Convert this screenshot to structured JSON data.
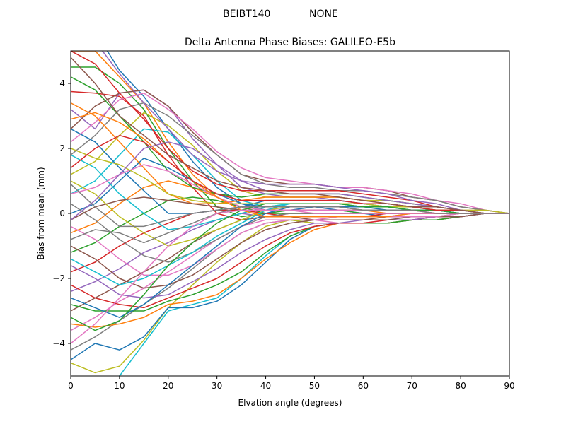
{
  "figure": {
    "suptitle_left": "BEIBT140",
    "suptitle_right": "NONE"
  },
  "chart_data": {
    "type": "line",
    "title": "Delta Antenna Phase Biases: GALILEO-E5b",
    "xlabel": "Elvation angle (degrees)",
    "ylabel": "Bias from mean (mm)",
    "xlim": [
      0,
      90
    ],
    "ylim": [
      -5,
      5
    ],
    "xticks": [
      0,
      10,
      20,
      30,
      40,
      50,
      60,
      70,
      80,
      90
    ],
    "yticks": [
      -4,
      -2,
      0,
      2,
      4
    ],
    "grid": false,
    "legend": "none",
    "palette": [
      "#1f77b4",
      "#ff7f0e",
      "#2ca02c",
      "#d62728",
      "#9467bd",
      "#8c564b",
      "#e377c2",
      "#7f7f7f",
      "#bcbd22",
      "#17becf"
    ],
    "x": [
      0,
      5,
      10,
      15,
      20,
      25,
      30,
      35,
      40,
      45,
      50,
      55,
      60,
      65,
      70,
      75,
      80,
      85,
      90
    ],
    "series": [
      {
        "values": [
          6.2,
          5.6,
          4.4,
          3.6,
          2.6,
          1.6,
          0.8,
          0.3,
          0.2,
          0.2,
          0.2,
          0.1,
          0.0,
          -0.1,
          -0.1,
          -0.1,
          -0.1,
          0.0,
          0.0
        ]
      },
      {
        "values": [
          5.0,
          5.0,
          4.2,
          3.4,
          2.2,
          1.2,
          0.5,
          0.1,
          0.1,
          0.1,
          0.1,
          0.1,
          0.1,
          0.0,
          0.0,
          0.0,
          0.0,
          0.0,
          0.0
        ]
      },
      {
        "values": [
          4.5,
          4.5,
          4.0,
          3.2,
          2.0,
          1.0,
          0.2,
          -0.1,
          0.0,
          0.1,
          0.1,
          0.1,
          0.0,
          0.0,
          0.0,
          0.0,
          0.0,
          0.0,
          0.0
        ]
      },
      {
        "values": [
          3.75,
          3.7,
          3.6,
          3.0,
          1.8,
          0.8,
          0.0,
          -0.2,
          -0.1,
          0.0,
          0.0,
          0.0,
          0.0,
          0.0,
          0.0,
          0.0,
          0.0,
          0.0,
          0.0
        ]
      },
      {
        "values": [
          3.2,
          2.6,
          3.7,
          3.8,
          3.3,
          2.3,
          1.5,
          0.8,
          0.6,
          0.5,
          0.5,
          0.4,
          0.3,
          0.2,
          0.2,
          0.1,
          0.0,
          0.0,
          0.0
        ]
      },
      {
        "values": [
          2.6,
          3.3,
          3.7,
          3.8,
          3.3,
          2.5,
          1.8,
          1.2,
          1.0,
          0.9,
          0.9,
          0.8,
          0.8,
          0.7,
          0.5,
          0.4,
          0.2,
          0.1,
          0.0
        ]
      },
      {
        "values": [
          2.2,
          2.8,
          3.5,
          3.7,
          3.2,
          2.6,
          1.9,
          1.4,
          1.1,
          1.0,
          0.9,
          0.8,
          0.8,
          0.7,
          0.6,
          0.4,
          0.3,
          0.1,
          0.0
        ]
      },
      {
        "values": [
          1.8,
          2.4,
          3.2,
          3.4,
          3.0,
          2.4,
          1.8,
          1.2,
          0.9,
          0.8,
          0.8,
          0.7,
          0.7,
          0.6,
          0.5,
          0.4,
          0.2,
          0.1,
          0.0
        ]
      },
      {
        "values": [
          1.2,
          1.6,
          2.4,
          3.1,
          2.7,
          2.1,
          1.3,
          0.7,
          0.5,
          0.5,
          0.5,
          0.5,
          0.4,
          0.4,
          0.3,
          0.2,
          0.1,
          0.1,
          0.0
        ]
      },
      {
        "values": [
          0.6,
          1.0,
          1.8,
          2.6,
          2.5,
          1.8,
          1.0,
          0.4,
          0.2,
          0.3,
          0.3,
          0.3,
          0.3,
          0.2,
          0.2,
          0.1,
          0.1,
          0.0,
          0.0
        ]
      },
      {
        "values": [
          0.0,
          0.3,
          1.0,
          1.7,
          1.4,
          1.0,
          0.6,
          0.3,
          0.1,
          0.1,
          0.2,
          0.2,
          0.2,
          0.2,
          0.1,
          0.1,
          0.1,
          0.0,
          0.0
        ]
      },
      {
        "values": [
          -0.6,
          -0.3,
          0.3,
          0.8,
          1.0,
          0.8,
          0.5,
          0.2,
          0.1,
          0.1,
          0.1,
          0.1,
          0.1,
          0.1,
          0.1,
          0.1,
          0.0,
          0.0,
          0.0
        ]
      },
      {
        "values": [
          -1.2,
          -0.9,
          -0.4,
          0.0,
          0.4,
          0.5,
          0.4,
          0.2,
          0.0,
          0.0,
          0.0,
          0.0,
          0.0,
          0.0,
          0.0,
          0.0,
          0.0,
          0.0,
          0.0
        ]
      },
      {
        "values": [
          -1.8,
          -1.5,
          -1.0,
          -0.6,
          -0.3,
          0.0,
          0.1,
          0.1,
          0.0,
          -0.1,
          -0.1,
          -0.1,
          -0.1,
          0.0,
          0.0,
          0.0,
          0.0,
          0.0,
          0.0
        ]
      },
      {
        "values": [
          -2.4,
          -2.1,
          -1.7,
          -1.2,
          -0.9,
          -0.5,
          -0.2,
          0.0,
          -0.1,
          -0.1,
          -0.1,
          -0.1,
          -0.1,
          -0.1,
          0.0,
          0.0,
          0.0,
          0.0,
          0.0
        ]
      },
      {
        "values": [
          -3.0,
          -2.6,
          -2.2,
          -1.8,
          -1.4,
          -0.9,
          -0.5,
          -0.2,
          -0.1,
          -0.1,
          -0.2,
          -0.2,
          -0.2,
          -0.1,
          -0.1,
          -0.1,
          0.0,
          0.0,
          0.0
        ]
      },
      {
        "values": [
          -3.6,
          -3.2,
          -2.7,
          -2.3,
          -1.8,
          -1.3,
          -0.8,
          -0.4,
          -0.2,
          -0.2,
          -0.2,
          -0.3,
          -0.3,
          -0.2,
          -0.2,
          -0.1,
          -0.1,
          0.0,
          0.0
        ]
      },
      {
        "values": [
          -4.2,
          -3.8,
          -3.3,
          -2.8,
          -2.3,
          -1.7,
          -1.1,
          -0.6,
          -0.3,
          -0.2,
          -0.3,
          -0.3,
          -0.3,
          -0.3,
          -0.2,
          -0.1,
          -0.1,
          0.0,
          0.0
        ]
      },
      {
        "values": [
          -4.6,
          -4.9,
          -4.7,
          -3.9,
          -2.9,
          -2.2,
          -1.5,
          -0.9,
          -0.4,
          -0.2,
          -0.3,
          -0.3,
          -0.3,
          -0.3,
          -0.2,
          -0.2,
          -0.1,
          0.0,
          0.0
        ]
      },
      {
        "values": [
          -5.2,
          -5.5,
          -5.0,
          -4.0,
          -3.0,
          -2.8,
          -2.6,
          -2.0,
          -1.3,
          -0.7,
          -0.4,
          -0.3,
          -0.3,
          -0.3,
          -0.2,
          -0.2,
          -0.1,
          0.0,
          0.0
        ]
      },
      {
        "values": [
          -4.5,
          -4.0,
          -4.2,
          -3.8,
          -2.9,
          -2.9,
          -2.7,
          -2.2,
          -1.5,
          -0.8,
          -0.4,
          -0.3,
          -0.3,
          -0.3,
          -0.2,
          -0.2,
          -0.1,
          0.0,
          0.0
        ]
      },
      {
        "values": [
          -3.4,
          -3.5,
          -3.4,
          -3.2,
          -2.8,
          -2.7,
          -2.5,
          -2.0,
          -1.4,
          -0.9,
          -0.5,
          -0.3,
          -0.3,
          -0.3,
          -0.2,
          -0.2,
          -0.1,
          0.0,
          0.0
        ]
      },
      {
        "values": [
          -2.8,
          -3.0,
          -3.0,
          -3.0,
          -2.7,
          -2.5,
          -2.2,
          -1.8,
          -1.2,
          -0.7,
          -0.4,
          -0.3,
          -0.3,
          -0.3,
          -0.2,
          -0.2,
          -0.1,
          0.0,
          0.0
        ]
      },
      {
        "values": [
          -2.2,
          -2.6,
          -2.8,
          -2.9,
          -2.6,
          -2.3,
          -2.0,
          -1.5,
          -1.0,
          -0.6,
          -0.4,
          -0.3,
          -0.3,
          -0.2,
          -0.2,
          -0.1,
          -0.1,
          0.0,
          0.0
        ]
      },
      {
        "values": [
          -1.6,
          -2.0,
          -2.5,
          -2.6,
          -2.5,
          -2.1,
          -1.7,
          -1.2,
          -0.8,
          -0.5,
          -0.3,
          -0.3,
          -0.2,
          -0.2,
          -0.2,
          -0.1,
          -0.1,
          0.0,
          0.0
        ]
      },
      {
        "values": [
          -1.0,
          -1.4,
          -2.0,
          -2.3,
          -2.2,
          -1.9,
          -1.4,
          -0.9,
          -0.5,
          -0.3,
          -0.2,
          -0.2,
          -0.2,
          -0.2,
          -0.1,
          -0.1,
          -0.1,
          0.0,
          0.0
        ]
      },
      {
        "values": [
          -0.4,
          -0.8,
          -1.4,
          -1.9,
          -1.9,
          -1.6,
          -1.1,
          -0.6,
          -0.3,
          -0.2,
          -0.2,
          -0.1,
          -0.1,
          -0.1,
          -0.1,
          -0.1,
          0.0,
          0.0,
          0.0
        ]
      },
      {
        "values": [
          0.3,
          -0.2,
          -0.8,
          -1.3,
          -1.5,
          -1.2,
          -0.8,
          -0.4,
          -0.1,
          0.0,
          0.0,
          0.0,
          0.0,
          0.0,
          0.0,
          0.0,
          0.0,
          0.0,
          0.0
        ]
      },
      {
        "values": [
          1.0,
          0.6,
          -0.1,
          -0.6,
          -1.0,
          -0.8,
          -0.5,
          -0.2,
          0.1,
          0.2,
          0.2,
          0.2,
          0.1,
          0.1,
          0.1,
          0.1,
          0.0,
          0.0,
          0.0
        ]
      },
      {
        "values": [
          1.8,
          1.4,
          0.6,
          0.0,
          -0.5,
          -0.4,
          -0.2,
          0.0,
          0.2,
          0.3,
          0.3,
          0.3,
          0.2,
          0.2,
          0.1,
          0.1,
          0.0,
          0.0,
          0.0
        ]
      },
      {
        "values": [
          2.6,
          2.2,
          1.4,
          0.7,
          0.0,
          0.0,
          0.1,
          0.2,
          0.4,
          0.4,
          0.4,
          0.4,
          0.3,
          0.3,
          0.2,
          0.1,
          0.1,
          0.0,
          0.0
        ]
      },
      {
        "values": [
          3.4,
          3.0,
          2.2,
          1.4,
          0.6,
          0.3,
          0.3,
          0.4,
          0.5,
          0.5,
          0.5,
          0.5,
          0.4,
          0.3,
          0.2,
          0.2,
          0.1,
          0.0,
          0.0
        ]
      },
      {
        "values": [
          4.2,
          3.8,
          3.0,
          2.2,
          1.3,
          0.8,
          0.6,
          0.5,
          0.6,
          0.6,
          0.6,
          0.6,
          0.5,
          0.4,
          0.3,
          0.2,
          0.1,
          0.0,
          0.0
        ]
      },
      {
        "values": [
          5.0,
          4.6,
          3.7,
          2.9,
          2.0,
          1.3,
          0.9,
          0.7,
          0.7,
          0.7,
          0.7,
          0.7,
          0.6,
          0.5,
          0.4,
          0.2,
          0.1,
          0.0,
          0.0
        ]
      },
      {
        "values": [
          5.8,
          5.3,
          4.3,
          3.4,
          2.6,
          1.8,
          1.3,
          1.0,
          0.9,
          0.9,
          0.9,
          0.8,
          0.7,
          0.6,
          0.4,
          0.3,
          0.1,
          0.0,
          0.0
        ]
      },
      {
        "values": [
          -0.2,
          0.2,
          0.4,
          0.5,
          0.4,
          0.3,
          0.2,
          0.1,
          0.1,
          0.1,
          0.1,
          0.1,
          0.1,
          0.1,
          0.1,
          0.0,
          0.0,
          0.0,
          0.0
        ]
      },
      {
        "values": [
          0.6,
          0.8,
          1.2,
          1.5,
          1.3,
          0.9,
          0.5,
          0.2,
          0.1,
          0.1,
          0.1,
          0.1,
          0.1,
          0.1,
          0.1,
          0.0,
          0.0,
          0.0,
          0.0
        ]
      },
      {
        "values": [
          -0.8,
          -0.5,
          -0.6,
          -0.9,
          -0.6,
          -0.3,
          0.0,
          0.2,
          0.2,
          0.2,
          0.2,
          0.2,
          0.1,
          0.1,
          0.1,
          0.1,
          0.0,
          0.0,
          0.0
        ]
      },
      {
        "values": [
          2.0,
          1.7,
          1.5,
          1.1,
          0.6,
          0.4,
          0.3,
          0.3,
          0.3,
          0.3,
          0.3,
          0.3,
          0.3,
          0.2,
          0.2,
          0.1,
          0.1,
          0.0,
          0.0
        ]
      },
      {
        "values": [
          -1.4,
          -1.8,
          -2.2,
          -2.0,
          -1.6,
          -1.2,
          -0.7,
          -0.3,
          0.1,
          0.3,
          0.3,
          0.3,
          0.2,
          0.2,
          0.1,
          0.1,
          0.0,
          0.0,
          0.0
        ]
      },
      {
        "values": [
          -2.6,
          -2.9,
          -3.2,
          -2.8,
          -2.2,
          -1.6,
          -1.0,
          -0.4,
          0.0,
          0.2,
          0.2,
          0.2,
          0.2,
          0.1,
          0.1,
          0.1,
          0.0,
          0.0,
          0.0
        ]
      },
      {
        "values": [
          2.9,
          3.1,
          2.8,
          2.3,
          1.6,
          1.0,
          0.5,
          0.1,
          -0.1,
          -0.1,
          -0.1,
          -0.1,
          -0.1,
          -0.1,
          0.0,
          0.0,
          0.0,
          0.0,
          0.0
        ]
      },
      {
        "values": [
          -3.2,
          -3.6,
          -3.3,
          -2.5,
          -1.6,
          -0.9,
          -0.3,
          0.1,
          0.3,
          0.3,
          0.3,
          0.3,
          0.2,
          0.2,
          0.1,
          0.1,
          0.0,
          0.0,
          0.0
        ]
      },
      {
        "values": [
          1.4,
          2.0,
          2.4,
          2.2,
          1.6,
          1.0,
          0.6,
          0.4,
          0.4,
          0.4,
          0.4,
          0.4,
          0.3,
          0.3,
          0.2,
          0.1,
          0.1,
          0.0,
          0.0
        ]
      },
      {
        "values": [
          -0.2,
          0.4,
          1.2,
          2.0,
          2.2,
          2.0,
          1.5,
          1.0,
          0.7,
          0.6,
          0.6,
          0.6,
          0.5,
          0.4,
          0.3,
          0.2,
          0.1,
          0.0,
          0.0
        ]
      },
      {
        "values": [
          4.8,
          4.0,
          3.0,
          2.4,
          1.8,
          1.4,
          1.0,
          0.8,
          0.7,
          0.6,
          0.6,
          0.5,
          0.4,
          0.3,
          0.2,
          0.2,
          0.1,
          0.0,
          0.0
        ]
      },
      {
        "values": [
          -4.0,
          -3.4,
          -2.6,
          -1.8,
          -1.0,
          -0.4,
          0.0,
          0.1,
          0.1,
          0.1,
          0.0,
          0.0,
          0.0,
          0.0,
          0.0,
          0.0,
          0.0,
          0.0,
          0.0
        ]
      },
      {
        "values": [
          0.9,
          0.2,
          -0.4,
          -0.4,
          -0.2,
          0.0,
          0.1,
          0.2,
          0.2,
          0.2,
          0.2,
          0.2,
          0.1,
          0.1,
          0.1,
          0.0,
          0.0,
          0.0,
          0.0
        ]
      }
    ]
  }
}
